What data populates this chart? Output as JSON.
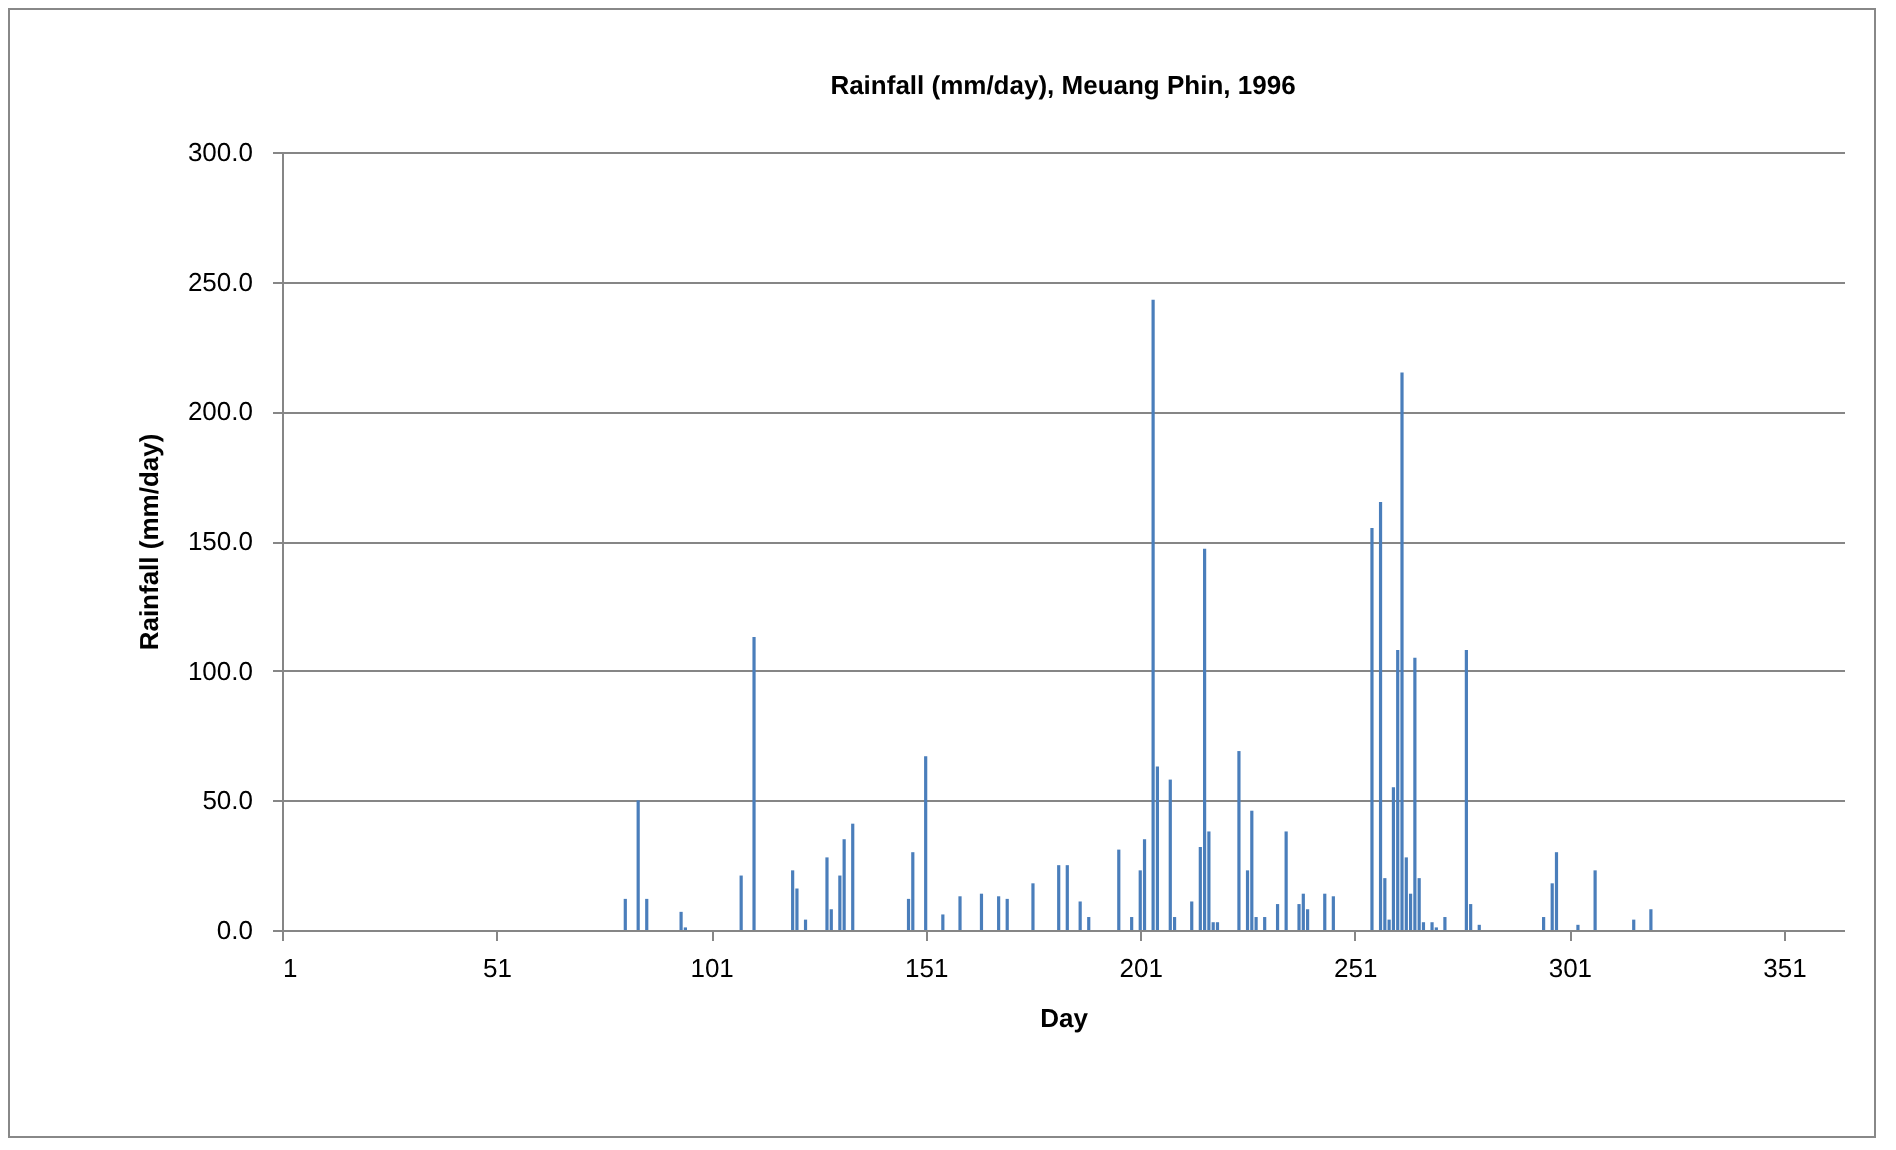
{
  "chart_data": {
    "type": "bar",
    "title": "Rainfall (mm/day), Meuang Phin, 1996",
    "xlabel": "Day",
    "ylabel": "Rainfall (mm/day)",
    "x": [
      81,
      84,
      86,
      94,
      95,
      108,
      111,
      120,
      121,
      123,
      128,
      129,
      131,
      132,
      134,
      147,
      148,
      151,
      155,
      159,
      164,
      168,
      170,
      176,
      182,
      184,
      187,
      189,
      196,
      199,
      201,
      202,
      204,
      205,
      208,
      209,
      213,
      215,
      216,
      217,
      218,
      219,
      224,
      226,
      227,
      228,
      230,
      233,
      235,
      238,
      239,
      240,
      244,
      246,
      255,
      257,
      258,
      259,
      260,
      261,
      262,
      263,
      264,
      265,
      266,
      267,
      269,
      270,
      272,
      277,
      278,
      280,
      295,
      297,
      298,
      303,
      307,
      316,
      320
    ],
    "values": [
      12,
      50,
      12,
      7,
      1,
      21,
      113,
      23,
      16,
      4,
      28,
      8,
      21,
      35,
      41,
      12,
      30,
      67,
      6,
      13,
      14,
      13,
      12,
      18,
      25,
      25,
      11,
      5,
      31,
      5,
      23,
      35,
      243,
      63,
      58,
      5,
      11,
      32,
      147,
      38,
      3,
      3,
      69,
      23,
      46,
      5,
      5,
      10,
      38,
      10,
      14,
      8,
      14,
      13,
      155,
      165,
      20,
      4,
      55,
      108,
      215,
      28,
      14,
      105,
      20,
      3,
      3,
      1,
      5,
      108,
      10,
      2,
      5,
      18,
      30,
      2,
      23,
      4,
      8
    ],
    "color": "#4a7ebb",
    "xlim": [
      1,
      365
    ],
    "xticks": [
      1,
      51,
      101,
      151,
      201,
      251,
      301,
      351
    ],
    "ylim": [
      0,
      300
    ],
    "yticks": [
      {
        "value": 0,
        "label": "0.0"
      },
      {
        "value": 50,
        "label": "50.0"
      },
      {
        "value": 100,
        "label": "100.0"
      },
      {
        "value": 150,
        "label": "150.0"
      },
      {
        "value": 200,
        "label": "200.0"
      },
      {
        "value": 250,
        "label": "250.0"
      },
      {
        "value": 300,
        "label": "300.0"
      }
    ],
    "grid": "y"
  }
}
